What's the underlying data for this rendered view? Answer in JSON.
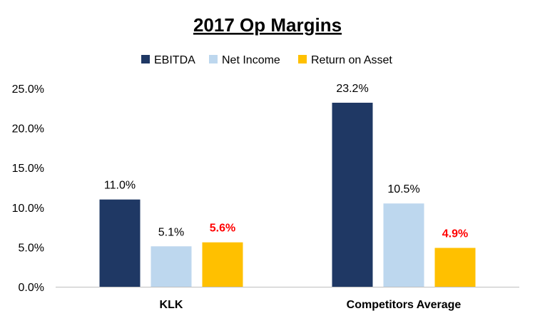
{
  "chart_data": {
    "type": "bar",
    "title": "2017 Op Margins",
    "categories": [
      "KLK",
      "Competitors Average"
    ],
    "series": [
      {
        "name": "EBITDA",
        "color": "#1F3864",
        "values": [
          11.0,
          23.2
        ],
        "labels": [
          "11.0%",
          "23.2%"
        ],
        "label_color": "#000000"
      },
      {
        "name": "Net Income",
        "color": "#BDD7EE",
        "values": [
          5.1,
          10.5
        ],
        "labels": [
          "5.1%",
          "10.5%"
        ],
        "label_color": "#000000"
      },
      {
        "name": "Return on Asset",
        "color": "#FFC000",
        "values": [
          5.6,
          4.9
        ],
        "labels": [
          "5.6%",
          "4.9%"
        ],
        "label_color": "#FF0000"
      }
    ],
    "yticks": [
      "0.0%",
      "5.0%",
      "10.0%",
      "15.0%",
      "20.0%",
      "25.0%"
    ],
    "ylim": [
      0,
      25
    ],
    "ytick_step": 5,
    "xlabel": "",
    "ylabel": "",
    "legend_position": "top",
    "grid": false
  }
}
